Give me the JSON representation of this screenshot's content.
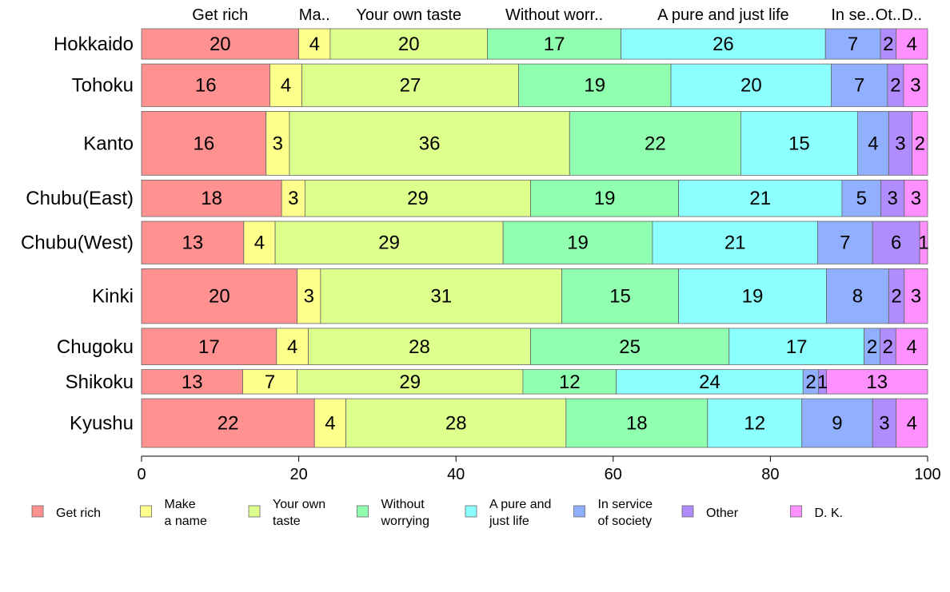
{
  "chart_data": {
    "type": "bar",
    "orientation": "horizontal",
    "stacked": true,
    "normalized_percent": true,
    "categories": [
      "Hokkaido",
      "Tohoku",
      "Kanto",
      "Chubu(East)",
      "Chubu(West)",
      "Kinki",
      "Chugoku",
      "Shikoku",
      "Kyushu"
    ],
    "bar_widths": [
      1.0,
      1.4,
      2.1,
      1.2,
      1.4,
      1.8,
      1.2,
      0.8,
      1.6
    ],
    "series": [
      {
        "name": "Get rich",
        "color": "#FF9190",
        "values": [
          20,
          16,
          16,
          18,
          13,
          20,
          17,
          13,
          22
        ]
      },
      {
        "name": "Make a name",
        "color": "#FFFF8C",
        "values": [
          4,
          4,
          3,
          3,
          4,
          3,
          4,
          7,
          4
        ]
      },
      {
        "name": "Your own taste",
        "color": "#DDFF8C",
        "values": [
          20,
          27,
          36,
          29,
          29,
          31,
          28,
          29,
          28
        ]
      },
      {
        "name": "Without worrying",
        "color": "#90FFAF",
        "values": [
          17,
          19,
          22,
          19,
          19,
          15,
          25,
          12,
          18
        ]
      },
      {
        "name": "A pure and just life",
        "color": "#8CFFFF",
        "values": [
          26,
          20,
          15,
          21,
          21,
          19,
          17,
          24,
          12
        ]
      },
      {
        "name": "In service of society",
        "color": "#90B0FF",
        "values": [
          7,
          7,
          4,
          5,
          7,
          8,
          2,
          2,
          9
        ]
      },
      {
        "name": "Other",
        "color": "#B08CFF",
        "values": [
          2,
          2,
          3,
          3,
          6,
          2,
          2,
          1,
          3
        ]
      },
      {
        "name": "D. K.",
        "color": "#FF90FF",
        "values": [
          4,
          3,
          2,
          3,
          1,
          3,
          4,
          13,
          4
        ]
      }
    ],
    "top_labels": [
      "Get rich",
      "Ma..",
      "Your own taste",
      "Without worr..",
      "A pure and just life",
      "In se..",
      "Ot..",
      "D.."
    ],
    "legend_labels": [
      [
        "Get rich"
      ],
      [
        "Make",
        "a name"
      ],
      [
        "Your own",
        "taste"
      ],
      [
        "Without",
        "worrying"
      ],
      [
        "A pure and",
        "just life"
      ],
      [
        "In service",
        "of society"
      ],
      [
        "Other"
      ],
      [
        "D. K."
      ]
    ],
    "xlim": [
      0,
      100
    ],
    "xticks": [
      0,
      20,
      40,
      60,
      80,
      100
    ],
    "grid": false,
    "legend_position": "bottom"
  }
}
